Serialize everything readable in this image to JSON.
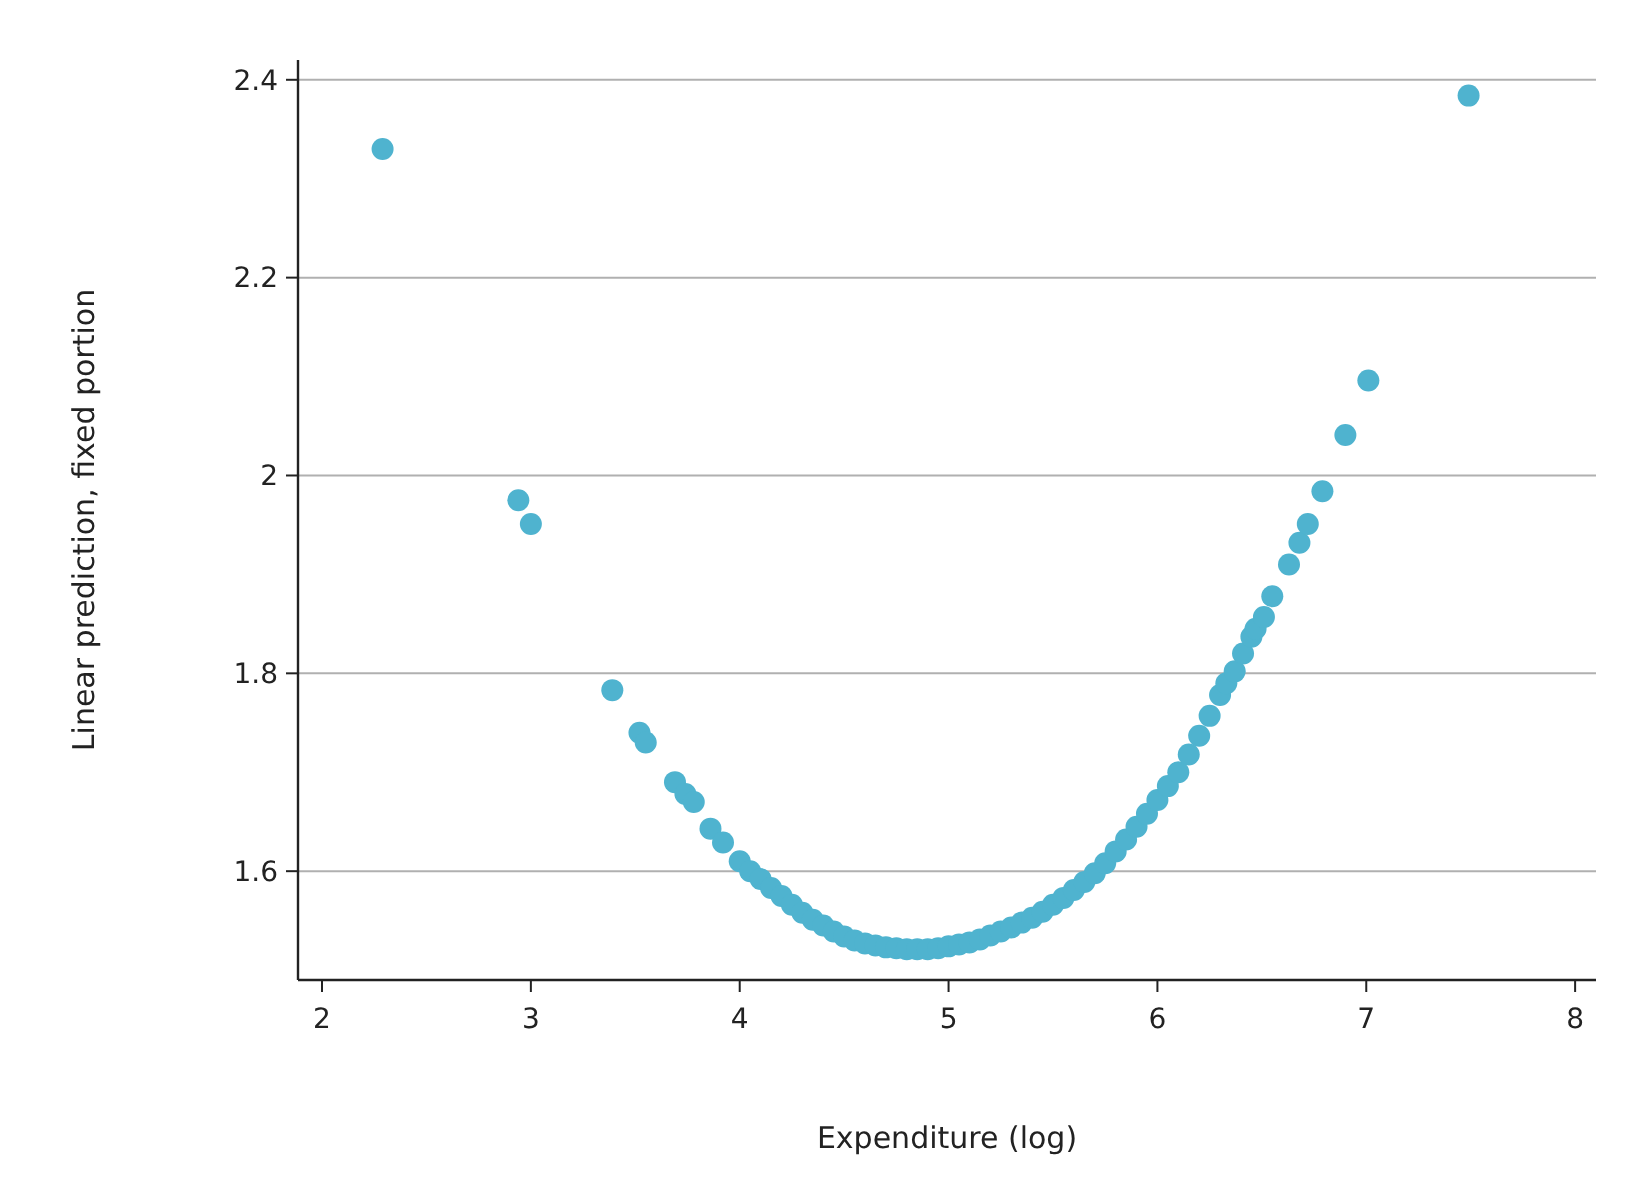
{
  "chart_data": {
    "type": "scatter",
    "xlabel": "Expenditure (log)",
    "ylabel": "Linear prediction, fixed portion",
    "xlim": [
      1.885,
      8.1
    ],
    "ylim": [
      1.49,
      2.42
    ],
    "xticks": [
      2,
      3,
      4,
      5,
      6,
      7,
      8
    ],
    "yticks": [
      {
        "value": 1.6,
        "label": "1.6"
      },
      {
        "value": 1.8,
        "label": "1.8"
      },
      {
        "value": 2,
        "label": "2"
      },
      {
        "value": 2.2,
        "label": "2.2"
      },
      {
        "value": 2.4,
        "label": "2.4"
      }
    ],
    "grid": "y",
    "marker": "circle",
    "series": [
      {
        "color": "#4fb3cf",
        "x": [
          2.29,
          2.94,
          3.0,
          3.39,
          3.52,
          3.55,
          3.69,
          3.74,
          3.78,
          3.86,
          3.92,
          4.0,
          4.05,
          4.1,
          4.15,
          4.2,
          4.25,
          4.3,
          4.35,
          4.4,
          4.45,
          4.5,
          4.55,
          4.6,
          4.65,
          4.7,
          4.75,
          4.8,
          4.85,
          4.9,
          4.95,
          5.0,
          5.05,
          5.1,
          5.15,
          5.2,
          5.25,
          5.3,
          5.35,
          5.4,
          5.45,
          5.5,
          5.55,
          5.6,
          5.65,
          5.7,
          5.75,
          5.8,
          5.85,
          5.9,
          5.95,
          6.0,
          6.05,
          6.1,
          6.15,
          6.2,
          6.25,
          6.3,
          6.33,
          6.37,
          6.41,
          6.45,
          6.47,
          6.51,
          6.55,
          6.63,
          6.68,
          6.72,
          6.79,
          6.9,
          7.01,
          7.49
        ],
        "values": [
          2.33,
          1.975,
          1.951,
          1.783,
          1.74,
          1.73,
          1.69,
          1.678,
          1.67,
          1.643,
          1.629,
          1.61,
          1.6,
          1.592,
          1.583,
          1.575,
          1.566,
          1.558,
          1.551,
          1.545,
          1.539,
          1.534,
          1.53,
          1.527,
          1.525,
          1.523,
          1.522,
          1.521,
          1.521,
          1.521,
          1.522,
          1.524,
          1.526,
          1.528,
          1.531,
          1.535,
          1.539,
          1.543,
          1.548,
          1.553,
          1.559,
          1.566,
          1.573,
          1.581,
          1.589,
          1.598,
          1.608,
          1.62,
          1.632,
          1.645,
          1.658,
          1.672,
          1.686,
          1.7,
          1.718,
          1.737,
          1.757,
          1.778,
          1.79,
          1.802,
          1.82,
          1.837,
          1.845,
          1.857,
          1.878,
          1.91,
          1.932,
          1.951,
          1.984,
          2.041,
          2.096,
          2.384
        ]
      }
    ]
  }
}
